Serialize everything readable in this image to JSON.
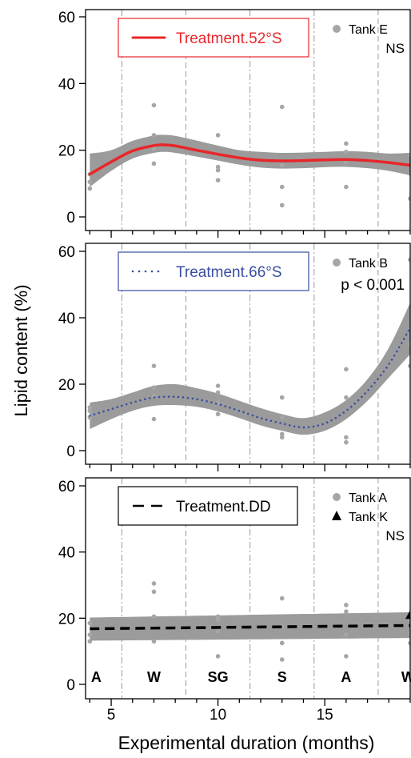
{
  "figure": {
    "xlabel": "Experimental duration (months)",
    "ylabel": "Lipid content (%)",
    "colors": {
      "band": "#9b9b9b",
      "points": "#a6a6a6",
      "vline": "#9a9a9a",
      "axis": "#000000"
    }
  },
  "chart_data": [
    {
      "type": "scatter",
      "panel": "top",
      "ylim": [
        0,
        60
      ],
      "xlim": [
        3.8,
        19
      ],
      "yticks": [
        0,
        20,
        40,
        60
      ],
      "xticks": [
        5,
        10,
        15
      ],
      "grid": false,
      "legend": {
        "label": "Treatment.52°S",
        "line_style": "solid",
        "color": "#e8262a",
        "placement": "top-left"
      },
      "point_legend": [
        {
          "label": "Tank E",
          "marker": "circle"
        }
      ],
      "significance": "NS",
      "season_boundaries": {
        "dashdot": [
          5.5,
          11.5,
          14.5
        ],
        "dashed": [
          8.5,
          17.5
        ]
      },
      "series": [
        {
          "name": "Treatment.52°S",
          "kind": "smooth",
          "x": [
            4.0,
            5.0,
            6.0,
            7.0,
            7.5,
            8.0,
            9.0,
            10.0,
            11.0,
            12.0,
            13.0,
            14.0,
            15.0,
            16.0,
            17.0,
            18.0,
            19.0
          ],
          "y": [
            12.8,
            16.5,
            19.8,
            21.4,
            21.6,
            21.3,
            20.0,
            18.8,
            17.7,
            17.0,
            16.8,
            16.9,
            17.1,
            17.2,
            16.9,
            16.3,
            15.5
          ],
          "lower": [
            9.0,
            13.8,
            17.5,
            19.2,
            19.5,
            19.2,
            18.1,
            16.9,
            15.7,
            14.8,
            14.5,
            14.6,
            14.9,
            15.0,
            14.6,
            13.8,
            12.5
          ],
          "upper": [
            19.0,
            20.0,
            22.8,
            24.4,
            24.6,
            24.3,
            22.9,
            21.4,
            20.0,
            19.5,
            19.2,
            19.3,
            19.5,
            19.7,
            19.5,
            19.0,
            19.2
          ]
        },
        {
          "name": "Tank E",
          "kind": "points",
          "x": [
            4,
            4,
            4,
            7,
            7,
            7,
            7,
            10,
            10,
            10,
            10,
            13,
            13,
            13,
            13,
            16,
            16,
            16,
            16,
            19,
            19,
            19
          ],
          "y": [
            8.5,
            10.5,
            12.8,
            33.5,
            24.5,
            20.5,
            16,
            24.5,
            15,
            14,
            11,
            33,
            15.5,
            9,
            3.5,
            22,
            19.5,
            16.5,
            9,
            18.5,
            13,
            5.5
          ]
        }
      ]
    },
    {
      "type": "scatter",
      "panel": "middle",
      "ylim": [
        0,
        60
      ],
      "xlim": [
        3.8,
        19
      ],
      "yticks": [
        0,
        20,
        40,
        60
      ],
      "xticks": [
        5,
        10,
        15
      ],
      "grid": false,
      "legend": {
        "label": "Treatment.66°S",
        "line_style": "dotted",
        "color": "#3a4ea2",
        "placement": "top-left"
      },
      "point_legend": [
        {
          "label": "Tank B",
          "marker": "circle"
        }
      ],
      "significance": "p < 0.001",
      "season_boundaries": {
        "dashdot": [
          5.5,
          11.5,
          14.5
        ],
        "dashed": [
          8.5,
          17.5
        ]
      },
      "series": [
        {
          "name": "Treatment.66°S",
          "kind": "smooth",
          "x": [
            4.0,
            5.0,
            6.0,
            7.0,
            8.0,
            9.0,
            10.0,
            11.0,
            12.0,
            13.0,
            14.0,
            15.0,
            16.0,
            17.0,
            18.0,
            19.0
          ],
          "y": [
            10.5,
            12.5,
            14.5,
            16.0,
            16.2,
            15.5,
            14.0,
            12.0,
            9.8,
            8.2,
            7.0,
            8.2,
            12.0,
            18.0,
            26.0,
            37.0
          ],
          "lower": [
            6.5,
            9.5,
            12.0,
            13.5,
            13.7,
            13.2,
            11.8,
            9.8,
            7.6,
            6.0,
            4.8,
            6.0,
            9.5,
            15.0,
            22.0,
            29.0
          ],
          "upper": [
            14.5,
            15.5,
            17.5,
            19.5,
            20.0,
            18.8,
            17.2,
            15.0,
            12.8,
            11.0,
            9.8,
            11.5,
            15.2,
            21.5,
            31.0,
            44.5
          ]
        },
        {
          "name": "Tank B",
          "kind": "points",
          "x": [
            4,
            4,
            4,
            7,
            7,
            7,
            7,
            10,
            10,
            10,
            10,
            13,
            13,
            13,
            13,
            16,
            16,
            16,
            16,
            19,
            19,
            19,
            19
          ],
          "y": [
            13,
            12,
            10,
            25.5,
            19,
            16.5,
            9.5,
            19.5,
            17.5,
            14.5,
            11,
            16,
            10,
            5,
            4,
            24.5,
            16,
            4,
            2.5,
            57.5,
            36.5,
            32,
            25.5
          ]
        }
      ]
    },
    {
      "type": "scatter",
      "panel": "bottom",
      "ylim": [
        0,
        60
      ],
      "xlim": [
        3.8,
        19
      ],
      "yticks": [
        0,
        20,
        40,
        60
      ],
      "xticks": [
        5,
        10,
        15
      ],
      "grid": false,
      "legend": {
        "label": "Treatment.DD",
        "line_style": "dashed",
        "color": "#000000",
        "placement": "top-left"
      },
      "point_legend": [
        {
          "label": "Tank A",
          "marker": "circle"
        },
        {
          "label": "Tank K",
          "marker": "triangle"
        }
      ],
      "significance": "NS",
      "season_boundaries": {
        "dashdot": [
          5.5,
          11.5,
          14.5
        ],
        "dashed": [
          8.5,
          17.5
        ]
      },
      "season_labels": [
        {
          "label": "A",
          "x": 4.3
        },
        {
          "label": "W",
          "x": 7.0
        },
        {
          "label": "SG",
          "x": 10.0
        },
        {
          "label": "S",
          "x": 13.0
        },
        {
          "label": "A",
          "x": 16.0
        },
        {
          "label": "W",
          "x": 18.9
        }
      ],
      "series": [
        {
          "name": "Treatment.DD",
          "kind": "smooth",
          "x": [
            4.0,
            19.0
          ],
          "y": [
            16.8,
            17.8
          ],
          "lower": [
            13.2,
            14.0
          ],
          "upper": [
            20.2,
            21.8
          ]
        },
        {
          "name": "Tank A",
          "kind": "points",
          "x": [
            4,
            4,
            4,
            7,
            7,
            7,
            7,
            7,
            10,
            10,
            10,
            10,
            13,
            13,
            13,
            13,
            16,
            16,
            16,
            16,
            19,
            19,
            19
          ],
          "y": [
            18.5,
            15,
            13,
            30.5,
            28,
            20.5,
            17,
            13,
            20.5,
            19.5,
            16,
            8.5,
            26,
            17.5,
            12.5,
            7.5,
            24,
            22,
            15,
            8.5,
            19.5,
            15.5,
            12.5
          ]
        },
        {
          "name": "Tank K",
          "kind": "triangles",
          "x": [
            19
          ],
          "y": [
            21
          ]
        }
      ]
    }
  ]
}
